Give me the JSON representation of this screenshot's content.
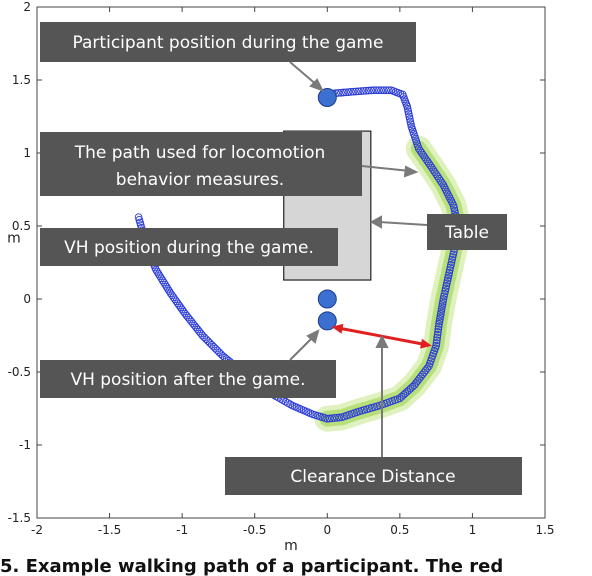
{
  "chart_data": {
    "type": "scatter",
    "xlabel": "m",
    "ylabel": "m",
    "xlim": [
      -2,
      1.5
    ],
    "ylim": [
      -1.5,
      2
    ],
    "x_ticks": [
      -2,
      -1.5,
      -1,
      -0.5,
      0,
      0.5,
      1,
      1.5
    ],
    "x_tick_labels": [
      "-2",
      "-1.5",
      "-1",
      "-0.5",
      "0",
      "0.5",
      "1",
      "1.5"
    ],
    "y_ticks": [
      -1.5,
      -1,
      -0.5,
      0,
      0.5,
      1,
      1.5,
      2
    ],
    "y_tick_labels": [
      "-1.5",
      "-1",
      "-0.5",
      "0",
      "0.5",
      "1",
      "1.5",
      "2"
    ],
    "series": [
      {
        "kind": "path",
        "points": [
          [
            -1.3,
            0.56
          ],
          [
            -1.25,
            0.38
          ],
          [
            -1.18,
            0.2
          ],
          [
            -1.08,
            0.04
          ],
          [
            -0.98,
            -0.1
          ],
          [
            -0.86,
            -0.25
          ],
          [
            -0.72,
            -0.39
          ],
          [
            -0.56,
            -0.52
          ],
          [
            -0.4,
            -0.64
          ],
          [
            -0.24,
            -0.73
          ],
          [
            -0.1,
            -0.79
          ],
          [
            0.0,
            -0.82
          ],
          [
            0.1,
            -0.81
          ],
          [
            0.22,
            -0.77
          ],
          [
            0.36,
            -0.73
          ],
          [
            0.5,
            -0.68
          ],
          [
            0.6,
            -0.59
          ],
          [
            0.7,
            -0.46
          ],
          [
            0.75,
            -0.32
          ],
          [
            0.77,
            -0.17
          ],
          [
            0.8,
            0.0
          ],
          [
            0.84,
            0.18
          ],
          [
            0.88,
            0.36
          ],
          [
            0.9,
            0.5
          ],
          [
            0.87,
            0.64
          ],
          [
            0.8,
            0.78
          ],
          [
            0.72,
            0.9
          ],
          [
            0.63,
            1.03
          ],
          [
            0.58,
            1.18
          ],
          [
            0.55,
            1.32
          ],
          [
            0.52,
            1.4
          ],
          [
            0.44,
            1.43
          ],
          [
            0.32,
            1.43
          ],
          [
            0.18,
            1.42
          ],
          [
            0.06,
            1.41
          ],
          [
            0.0,
            1.4
          ]
        ]
      },
      {
        "kind": "highlight",
        "points": [
          [
            0.0,
            -0.82
          ],
          [
            0.1,
            -0.81
          ],
          [
            0.22,
            -0.77
          ],
          [
            0.36,
            -0.73
          ],
          [
            0.5,
            -0.68
          ],
          [
            0.6,
            -0.59
          ],
          [
            0.7,
            -0.46
          ],
          [
            0.75,
            -0.32
          ],
          [
            0.77,
            -0.17
          ],
          [
            0.8,
            0.0
          ],
          [
            0.84,
            0.18
          ],
          [
            0.88,
            0.36
          ],
          [
            0.9,
            0.5
          ],
          [
            0.87,
            0.64
          ],
          [
            0.8,
            0.78
          ],
          [
            0.72,
            0.9
          ],
          [
            0.63,
            1.03
          ]
        ]
      }
    ],
    "markers": [
      {
        "name": "participant",
        "x": 0.0,
        "y": 1.38
      },
      {
        "name": "vh-during",
        "x": 0.0,
        "y": 0.0
      },
      {
        "name": "vh-after",
        "x": 0.0,
        "y": -0.15
      }
    ],
    "table": {
      "x0": -0.3,
      "x1": 0.3,
      "y0": 0.13,
      "y1": 1.15
    },
    "clearance": {
      "x0": 0.03,
      "y0": -0.19,
      "x1": 0.72,
      "y1": -0.32
    },
    "annotations": [
      {
        "text": "Participant position during the game"
      },
      {
        "text": "The path used for locomotion"
      },
      {
        "text": "behavior measures."
      },
      {
        "text": "VH position during the game."
      },
      {
        "text": "VH position after the game."
      },
      {
        "text": "Table"
      },
      {
        "text": "Clearance Distance"
      }
    ],
    "colors": {
      "path": "#2a3bd6",
      "marker": "#3b6fd0",
      "highlight": "#b8e07a",
      "arrow": "#e02020",
      "callout": "#555555"
    }
  },
  "caption_fragment": "5. Example walking path of a participant. The red"
}
